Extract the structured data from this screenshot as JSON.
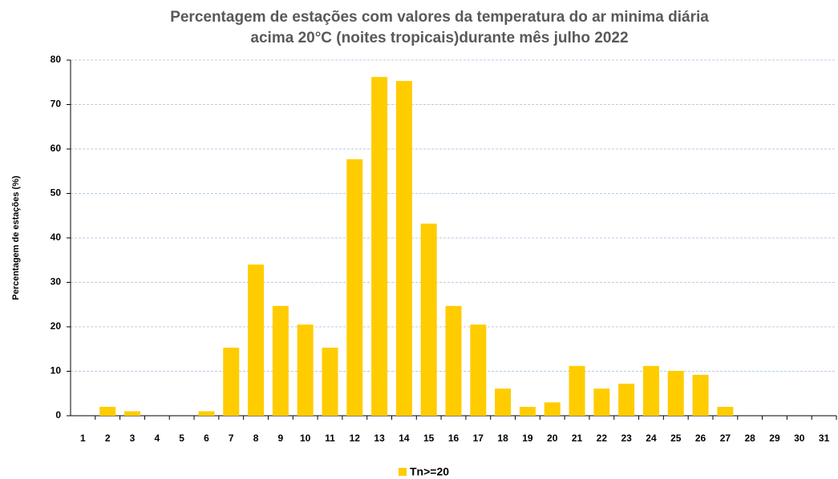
{
  "chart_data": {
    "type": "bar",
    "title": [
      "Percentagem de estações com valores da temperatura do ar minima diária",
      "acima 20°C (noites tropicais)durante mês julho 2022"
    ],
    "y_label": "Percentagem de estações (%)",
    "categories": [
      "1",
      "2",
      "3",
      "4",
      "5",
      "6",
      "7",
      "8",
      "9",
      "10",
      "11",
      "12",
      "13",
      "14",
      "15",
      "16",
      "17",
      "18",
      "19",
      "20",
      "21",
      "22",
      "23",
      "24",
      "25",
      "26",
      "27",
      "28",
      "29",
      "30",
      "31"
    ],
    "series": [
      {
        "name": "Tn>=20",
        "color": "#ffcc00",
        "values": [
          0,
          2,
          1,
          0,
          0,
          1,
          15.3,
          34,
          24.7,
          20.5,
          15.3,
          57.7,
          76.2,
          75.3,
          43.2,
          24.7,
          20.5,
          6.1,
          2,
          3,
          11.2,
          6.1,
          7.2,
          11.2,
          10.1,
          9.2,
          2,
          0,
          0,
          0,
          0
        ]
      }
    ],
    "ylim": [
      0,
      80
    ],
    "yticks": [
      0,
      10,
      20,
      30,
      40,
      50,
      60,
      70,
      80
    ],
    "grid": true,
    "legend": "bottom"
  }
}
